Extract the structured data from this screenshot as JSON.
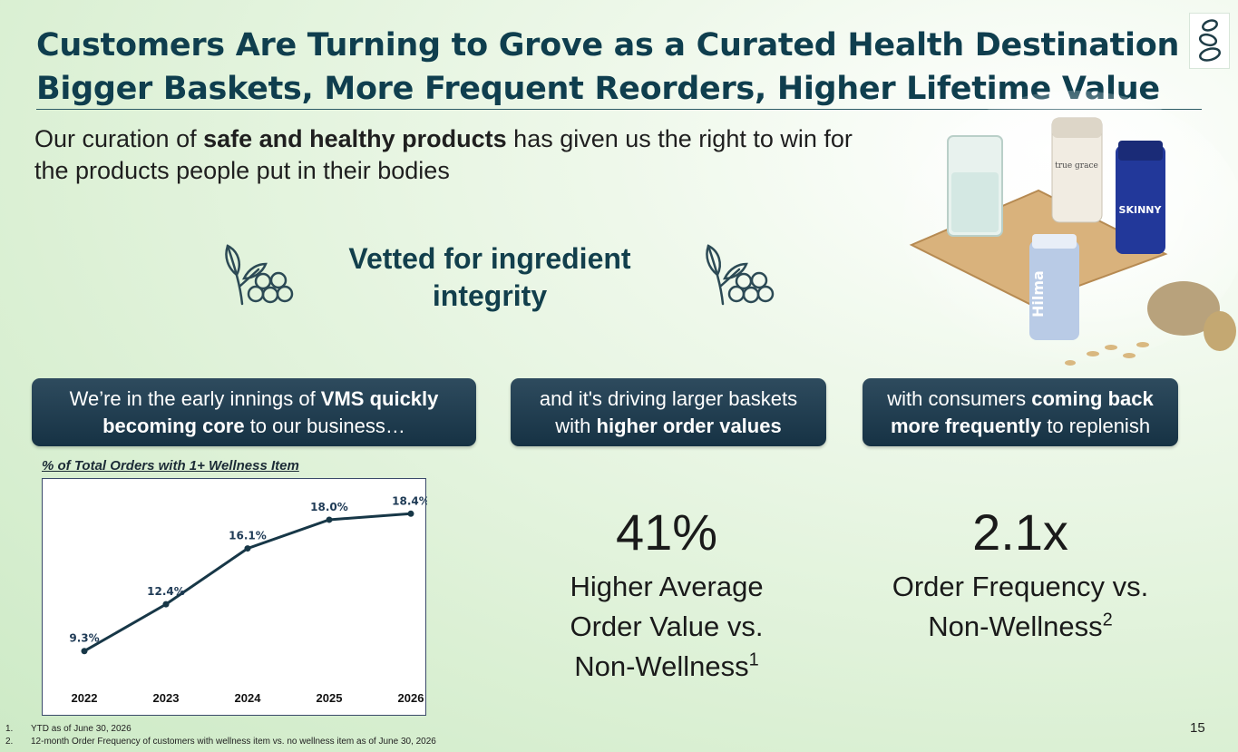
{
  "header": {
    "title_line1": "Customers Are Turning to Grove as a Curated Health Destination —",
    "title_line2": "Bigger Baskets, More Frequent Reorders, Higher Lifetime Value",
    "logo_icon": "grove-leaf-logo-icon"
  },
  "intro": {
    "part1": "Our curation of ",
    "bold": "safe and healthy products",
    "part2": " has given us the right to win for the products people put in their bodies"
  },
  "vetted": {
    "line1": "Vetted for ingredient",
    "line2": "integrity",
    "icon": "leaf-berries-icon"
  },
  "pills": [
    {
      "pre": "We’re in the early innings of ",
      "bold": "VMS quickly becoming core",
      "post": " to our business…"
    },
    {
      "pre": "and it's driving larger baskets with ",
      "bold": "higher order values",
      "post": ""
    },
    {
      "pre": "with consumers ",
      "bold": "coming back more frequently",
      "post": " to replenish"
    }
  ],
  "chart": {
    "caption": "% of Total Orders with 1+ Wellness Item"
  },
  "chart_data": {
    "type": "line",
    "title": "% of Total Orders with 1+ Wellness Item",
    "categories": [
      "2022",
      "2023",
      "2024",
      "2025",
      "2026"
    ],
    "values": [
      9.3,
      12.4,
      16.1,
      18.0,
      18.4
    ],
    "labels": [
      "9.3%",
      "12.4%",
      "16.1%",
      "18.0%",
      "18.4%"
    ],
    "xlabel": "",
    "ylabel": "",
    "ylim": [
      7,
      19.5
    ],
    "grid": false,
    "line_color": "#173747"
  },
  "stats": [
    {
      "value": "41%",
      "line1": "Higher Average",
      "line2": "Order Value vs.",
      "line3": "Non-Wellness",
      "sup": "1"
    },
    {
      "value": "2.1x",
      "line1": "Order Frequency vs.",
      "line2": "Non-Wellness",
      "sup": "2"
    }
  ],
  "footnotes": [
    {
      "num": "1.",
      "text": "YTD as of June 30, 2026"
    },
    {
      "num": "2.",
      "text": "12-month Order Frequency of customers with wellness item vs. no wellness item as of June 30, 2026"
    }
  ],
  "page_number": "15",
  "photo": {
    "icon": "supplement-bottles-photo"
  }
}
